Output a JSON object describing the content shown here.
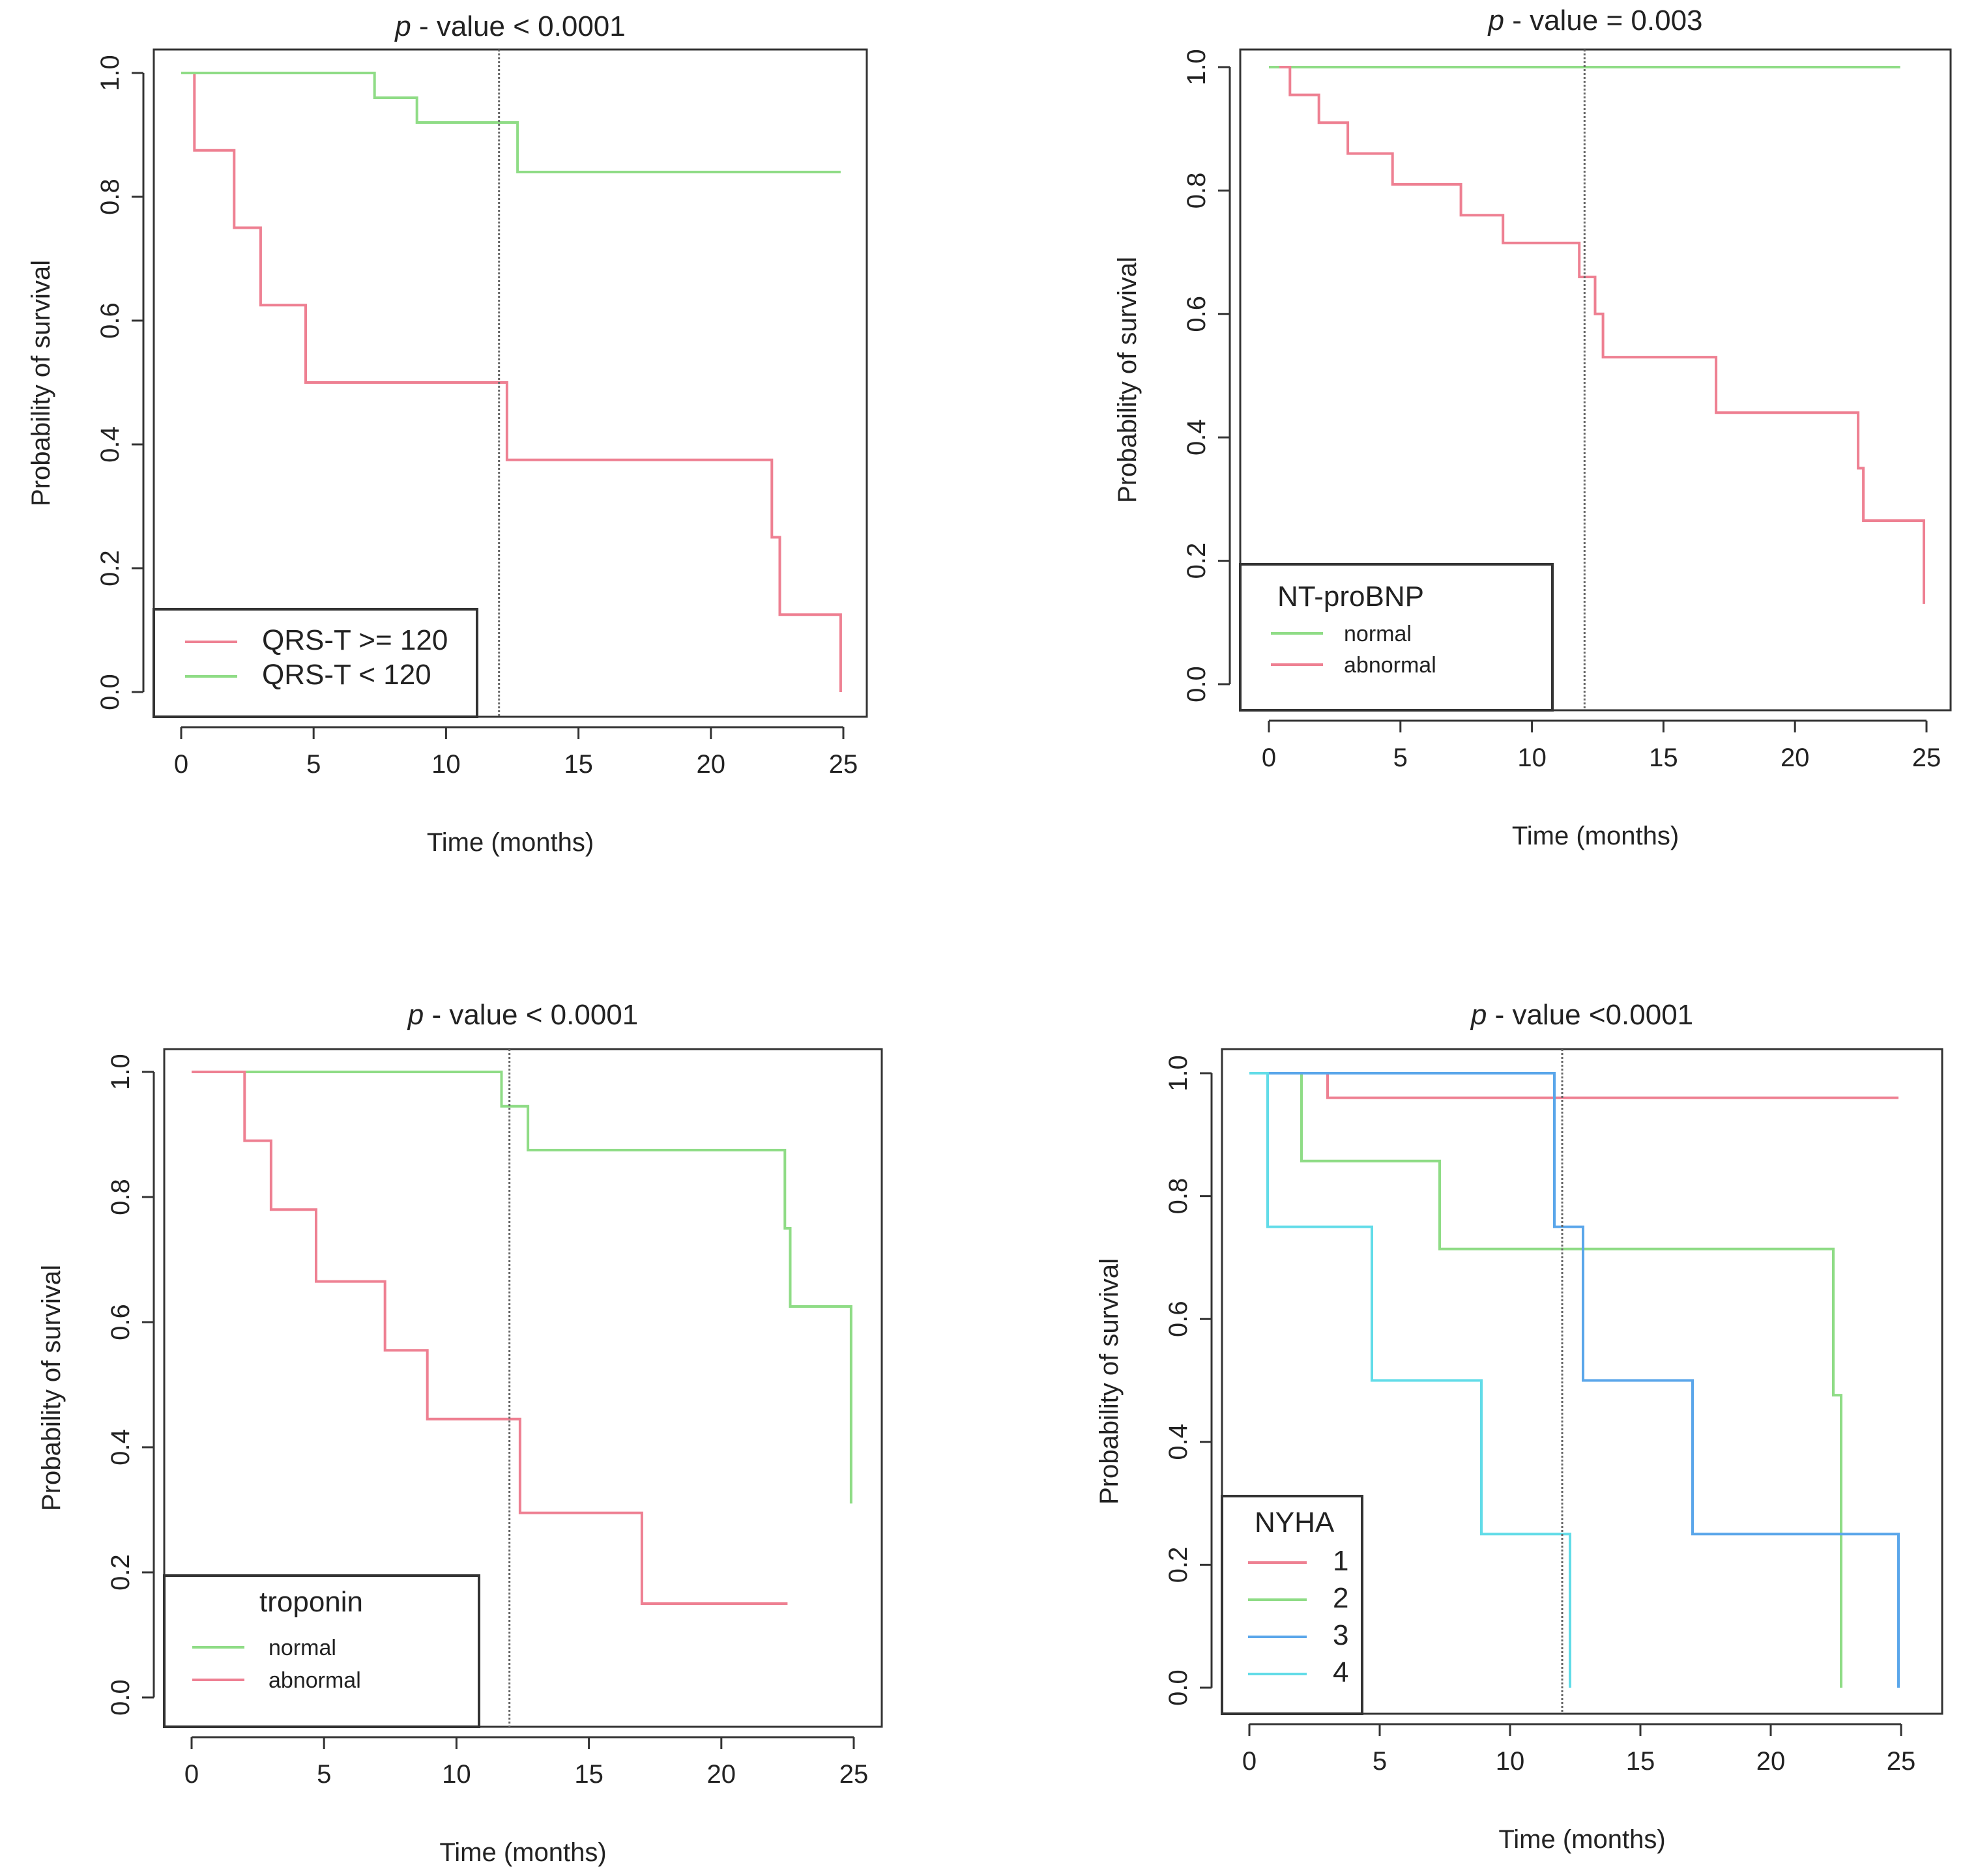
{
  "colors": {
    "red": "#ee8092",
    "green": "#8fdc86",
    "blue": "#5aa6ea",
    "cyan": "#62dce8",
    "axis": "#333333",
    "reference_line": "#666666"
  },
  "chart_data": [
    {
      "type": "line",
      "subtype": "kaplan-meier survival curve",
      "title_italic": "p",
      "title_rest": " - value < 0.0001",
      "xlabel": "Time (months)",
      "ylabel": "Probability of survival",
      "xlim": [
        0,
        25
      ],
      "ylim": [
        0,
        1
      ],
      "xticks": [
        "0",
        "5",
        "10",
        "15",
        "20",
        "25"
      ],
      "yticks": [
        "0.0",
        "0.2",
        "0.4",
        "0.6",
        "0.8",
        "1.0"
      ],
      "reference_x": 12,
      "legend": {
        "title": "",
        "position": "bottom-left"
      },
      "series": [
        {
          "name": "QRS-T >= 120",
          "color": "red",
          "points": [
            [
              0.5,
              1.0
            ],
            [
              0.5,
              0.875
            ],
            [
              2,
              0.875
            ],
            [
              2,
              0.75
            ],
            [
              3,
              0.75
            ],
            [
              3,
              0.625
            ],
            [
              4.7,
              0.625
            ],
            [
              4.7,
              0.5
            ],
            [
              12.3,
              0.5
            ],
            [
              12.3,
              0.375
            ],
            [
              22.3,
              0.375
            ],
            [
              22.3,
              0.25
            ],
            [
              22.6,
              0.25
            ],
            [
              22.6,
              0.125
            ],
            [
              24.9,
              0.125
            ],
            [
              24.9,
              0.0
            ]
          ]
        },
        {
          "name": "QRS-T < 120",
          "color": "green",
          "points": [
            [
              0,
              1.0
            ],
            [
              7.3,
              1.0
            ],
            [
              7.3,
              0.96
            ],
            [
              8.9,
              0.96
            ],
            [
              8.9,
              0.92
            ],
            [
              12.7,
              0.92
            ],
            [
              12.7,
              0.84
            ],
            [
              24.9,
              0.84
            ]
          ]
        }
      ]
    },
    {
      "type": "line",
      "subtype": "kaplan-meier survival curve",
      "title_italic": "p",
      "title_rest": " - value = 0.003",
      "xlabel": "Time (months)",
      "ylabel": "Probability of survival",
      "xlim": [
        0,
        25
      ],
      "ylim": [
        0,
        1
      ],
      "xticks": [
        "0",
        "5",
        "10",
        "15",
        "20",
        "25"
      ],
      "yticks": [
        "0.0",
        "0.2",
        "0.4",
        "0.6",
        "0.8",
        "1.0"
      ],
      "reference_x": 12,
      "legend": {
        "title": "NT-proBNP",
        "position": "bottom-left"
      },
      "series": [
        {
          "name": "normal",
          "color": "green",
          "points": [
            [
              0,
              1.0
            ],
            [
              24,
              1.0
            ]
          ]
        },
        {
          "name": "abnormal",
          "color": "red",
          "points": [
            [
              0.4,
              1.0
            ],
            [
              0.8,
              1.0
            ],
            [
              0.8,
              0.955
            ],
            [
              1.9,
              0.955
            ],
            [
              1.9,
              0.91
            ],
            [
              3,
              0.91
            ],
            [
              3,
              0.86
            ],
            [
              4.7,
              0.86
            ],
            [
              4.7,
              0.81
            ],
            [
              7.3,
              0.81
            ],
            [
              7.3,
              0.76
            ],
            [
              8.9,
              0.76
            ],
            [
              8.9,
              0.715
            ],
            [
              11.8,
              0.715
            ],
            [
              11.8,
              0.66
            ],
            [
              12.4,
              0.66
            ],
            [
              12.4,
              0.6
            ],
            [
              12.7,
              0.6
            ],
            [
              12.7,
              0.53
            ],
            [
              17,
              0.53
            ],
            [
              17,
              0.44
            ],
            [
              22.4,
              0.44
            ],
            [
              22.4,
              0.35
            ],
            [
              22.6,
              0.35
            ],
            [
              22.6,
              0.265
            ],
            [
              24.9,
              0.265
            ],
            [
              24.9,
              0.13
            ]
          ]
        }
      ]
    },
    {
      "type": "line",
      "subtype": "kaplan-meier survival curve",
      "title_italic": "p",
      "title_rest": " - value < 0.0001",
      "xlabel": "Time (months)",
      "ylabel": "Probability of survival",
      "xlim": [
        0,
        25
      ],
      "ylim": [
        0,
        1
      ],
      "xticks": [
        "0",
        "5",
        "10",
        "15",
        "20",
        "25"
      ],
      "yticks": [
        "0.0",
        "0.2",
        "0.4",
        "0.6",
        "0.8",
        "1.0"
      ],
      "reference_x": 12,
      "legend": {
        "title": "troponin",
        "position": "bottom-left"
      },
      "series": [
        {
          "name": "normal",
          "color": "green",
          "points": [
            [
              0,
              1.0
            ],
            [
              11.7,
              1.0
            ],
            [
              11.7,
              0.945
            ],
            [
              12.7,
              0.945
            ],
            [
              12.7,
              0.875
            ],
            [
              22.4,
              0.875
            ],
            [
              22.4,
              0.75
            ],
            [
              22.6,
              0.75
            ],
            [
              22.6,
              0.625
            ],
            [
              24.9,
              0.625
            ],
            [
              24.9,
              0.31
            ]
          ]
        },
        {
          "name": "abnormal",
          "color": "red",
          "points": [
            [
              0,
              1.0
            ],
            [
              2,
              1.0
            ],
            [
              2,
              0.89
            ],
            [
              3,
              0.89
            ],
            [
              3,
              0.78
            ],
            [
              4.7,
              0.78
            ],
            [
              4.7,
              0.665
            ],
            [
              7.3,
              0.665
            ],
            [
              7.3,
              0.555
            ],
            [
              8.9,
              0.555
            ],
            [
              8.9,
              0.445
            ],
            [
              12.4,
              0.445
            ],
            [
              12.4,
              0.295
            ],
            [
              17,
              0.295
            ],
            [
              17,
              0.15
            ],
            [
              22.5,
              0.15
            ]
          ]
        }
      ]
    },
    {
      "type": "line",
      "subtype": "kaplan-meier survival curve",
      "title_italic": "p",
      "title_rest": " - value <0.0001",
      "xlabel": "Time (months)",
      "ylabel": "Probability of survival",
      "xlim": [
        0,
        25
      ],
      "ylim": [
        0,
        1
      ],
      "xticks": [
        "0",
        "5",
        "10",
        "15",
        "20",
        "25"
      ],
      "yticks": [
        "0.0",
        "0.2",
        "0.4",
        "0.6",
        "0.8",
        "1.0"
      ],
      "reference_x": 12,
      "legend": {
        "title": "NYHA",
        "position": "bottom-left"
      },
      "series": [
        {
          "name": "1",
          "color": "red",
          "points": [
            [
              1.3,
              1.0
            ],
            [
              3,
              1.0
            ],
            [
              3,
              0.96
            ],
            [
              24.9,
              0.96
            ]
          ]
        },
        {
          "name": "2",
          "color": "green",
          "points": [
            [
              1.3,
              1.0
            ],
            [
              2,
              1.0
            ],
            [
              2,
              0.857
            ],
            [
              7.3,
              0.857
            ],
            [
              7.3,
              0.714
            ],
            [
              22.4,
              0.714
            ],
            [
              22.4,
              0.476
            ],
            [
              22.7,
              0.476
            ],
            [
              22.7,
              0.0
            ]
          ]
        },
        {
          "name": "3",
          "color": "blue",
          "points": [
            [
              0,
              1.0
            ],
            [
              11.7,
              1.0
            ],
            [
              11.7,
              0.75
            ],
            [
              12.8,
              0.75
            ],
            [
              12.8,
              0.5
            ],
            [
              17,
              0.5
            ],
            [
              17,
              0.25
            ],
            [
              24.9,
              0.25
            ],
            [
              24.9,
              0.0
            ]
          ]
        },
        {
          "name": "4",
          "color": "cyan",
          "points": [
            [
              0,
              1.0
            ],
            [
              0.7,
              1.0
            ],
            [
              0.7,
              0.75
            ],
            [
              4.7,
              0.75
            ],
            [
              4.7,
              0.5
            ],
            [
              8.9,
              0.5
            ],
            [
              8.9,
              0.25
            ],
            [
              12.3,
              0.25
            ],
            [
              12.3,
              0.0
            ]
          ]
        }
      ]
    }
  ]
}
